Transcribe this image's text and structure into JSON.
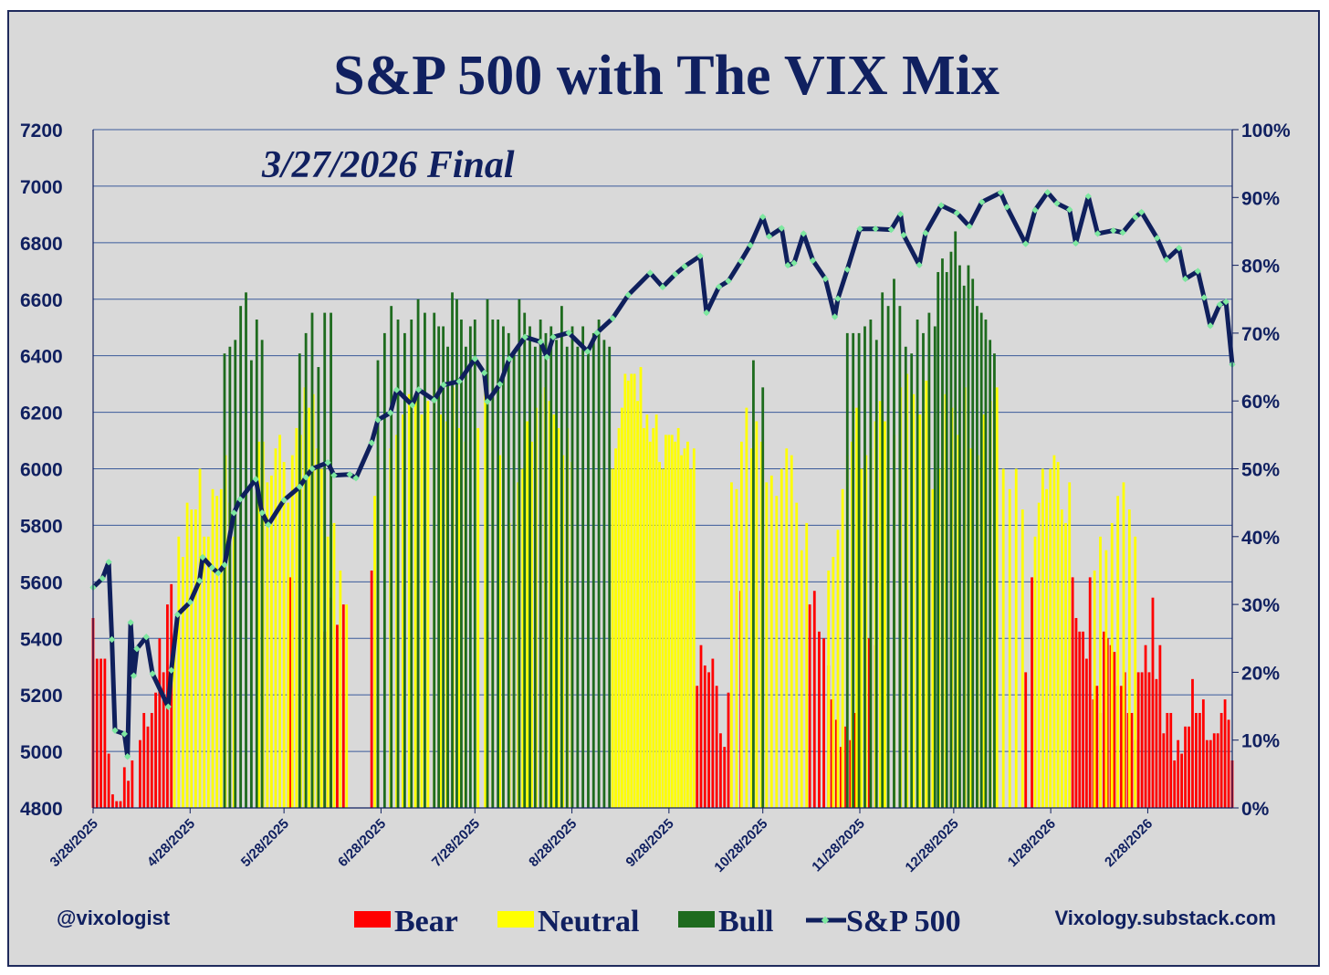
{
  "colors": {
    "background": "#d9d9d9",
    "bear": "#ff0000",
    "neutral": "#ffff00",
    "bull": "#1e6b1e",
    "sp500_line": "#0f1f5c",
    "sp500_marker": "#7ee8a0",
    "text": "#102060",
    "grid": "#3a5a9a"
  },
  "chart_data": {
    "type": "bar",
    "title": "S&P 500 with The VIX Mix",
    "subtitle": "3/27/2026 Final",
    "credit_left": "@vixologist",
    "credit_right": "Vixology.substack.com",
    "left_axis": {
      "ylim": [
        4800,
        7200
      ],
      "ticks": [
        "4800",
        "5000",
        "5200",
        "5400",
        "5600",
        "5800",
        "6000",
        "6200",
        "6400",
        "6600",
        "6800",
        "7000",
        "7200"
      ]
    },
    "right_axis": {
      "ylim": [
        0,
        100
      ],
      "ticks": [
        "0%",
        "10%",
        "20%",
        "30%",
        "40%",
        "50%",
        "60%",
        "70%",
        "80%",
        "90%",
        "100%"
      ]
    },
    "x_tick_labels": [
      "3/28/2025",
      "4/28/2025",
      "5/28/2025",
      "6/28/2025",
      "7/28/2025",
      "8/28/2025",
      "9/28/2025",
      "10/28/2025",
      "11/28/2025",
      "12/28/2025",
      "1/28/2026",
      "2/28/2026"
    ],
    "grid": true,
    "legend": {
      "placement": "bottom",
      "items": [
        {
          "name": "Bear",
          "kind": "bar",
          "color": "#ff0000"
        },
        {
          "name": "Neutral",
          "kind": "bar",
          "color": "#ffff00"
        },
        {
          "name": "Bull",
          "kind": "bar",
          "color": "#1e6b1e"
        },
        {
          "name": "S&P 500",
          "kind": "line",
          "color": "#0f1f5c"
        }
      ]
    },
    "bar_series": [
      {
        "name": "Bear",
        "axis": "right",
        "segments": [
          {
            "start": "3/28/2025",
            "end": "4/22/2025",
            "values": [
              28,
              22,
              22,
              22,
              8,
              2,
              1,
              1,
              6,
              4,
              7,
              0,
              10,
              14,
              12,
              14,
              17,
              25,
              20,
              30,
              33
            ]
          },
          {
            "start": "5/30/2025",
            "end": "5/30/2025",
            "values": [
              34
            ]
          },
          {
            "start": "6/10/2025",
            "end": "6/16/2025",
            "values": [
              26,
              31,
              27,
              30
            ]
          },
          {
            "start": "6/25/2025",
            "end": "6/25/2025",
            "values": [
              35
            ]
          },
          {
            "start": "8/1/2025",
            "end": "8/1/2025",
            "values": [
              26
            ]
          },
          {
            "start": "10/7/2025",
            "end": "10/17/2025",
            "values": [
              18,
              24,
              21,
              20,
              22,
              18,
              11,
              9,
              17
            ]
          },
          {
            "start": "10/21/2025",
            "end": "10/21/2025",
            "values": [
              32
            ]
          },
          {
            "start": "11/12/2025",
            "end": "11/18/2025",
            "values": [
              30,
              32,
              26,
              25,
              21
            ]
          },
          {
            "start": "11/19/2025",
            "end": "11/28/2025",
            "values": [
              16,
              13,
              9,
              12,
              10,
              14,
              7
            ]
          },
          {
            "start": "12/1/2025",
            "end": "12/3/2025",
            "values": [
              25,
              24
            ]
          },
          {
            "start": "1/20/2026",
            "end": "1/22/2026",
            "values": [
              20,
              34
            ]
          },
          {
            "start": "2/4/2026",
            "end": "2/24/2026",
            "values": [
              34,
              28,
              26,
              26,
              22,
              34,
              16,
              18,
              14,
              26,
              25,
              24,
              23,
              18,
              18,
              20,
              14,
              14,
              10
            ]
          },
          {
            "start": "2/25/2026",
            "end": "3/27/2026",
            "values": [
              20,
              20,
              24,
              20,
              31,
              19,
              24,
              11,
              14,
              14,
              7,
              10,
              8,
              12,
              12,
              19,
              14,
              14,
              16,
              10,
              10,
              11,
              11,
              14,
              16,
              13,
              7
            ]
          }
        ]
      },
      {
        "name": "Neutral",
        "axis": "right",
        "segments": [
          {
            "start": "4/23/2025",
            "end": "5/12/2025",
            "values": [
              25,
              40,
              37,
              45,
              44,
              44,
              50,
              40,
              40,
              47,
              46,
              47,
              52,
              45,
              40
            ]
          },
          {
            "start": "5/20/2025",
            "end": "6/9/2025",
            "values": [
              54,
              54,
              48,
              49,
              53,
              55,
              51,
              45,
              52,
              56,
              55,
              62,
              59,
              61,
              53,
              50
            ]
          },
          {
            "start": "6/11/2025",
            "end": "6/17/2025",
            "values": [
              40,
              42,
              35,
              30
            ]
          },
          {
            "start": "6/26/2025",
            "end": "6/27/2025",
            "values": [
              46,
              52
            ]
          },
          {
            "start": "7/1/2025",
            "end": "7/25/2025",
            "values": [
              53,
              55,
              58,
              61,
              61,
              58,
              60,
              62,
              58,
              57,
              62,
              56,
              54
            ]
          },
          {
            "start": "7/29/2025",
            "end": "8/5/2025",
            "values": [
              56,
              62,
              55,
              52
            ]
          },
          {
            "start": "8/8/2025",
            "end": "8/28/2025",
            "values": [
              42,
              39,
              48,
              50,
              57,
              54,
              59,
              61,
              62,
              60,
              58,
              56,
              52,
              56,
              51
            ]
          },
          {
            "start": "9/10/2025",
            "end": "10/6/2025",
            "values": [
              50,
              53,
              56,
              59,
              64,
              63,
              64,
              64,
              60,
              65,
              56,
              58,
              54,
              56,
              58,
              51,
              50,
              55,
              55,
              55,
              54,
              56,
              52,
              53,
              54,
              50,
              53
            ]
          },
          {
            "start": "10/18/2025",
            "end": "11/11/2025",
            "values": [
              48,
              47,
              54,
              59,
              53,
              57,
              54,
              48,
              49,
              46,
              50,
              53,
              52,
              45,
              38,
              42
            ]
          },
          {
            "start": "11/18/2025",
            "end": "12/6/2025",
            "values": [
              35,
              37,
              41,
              47,
              52,
              54,
              59,
              50,
              52,
              53,
              57,
              60,
              57
            ]
          },
          {
            "start": "12/9/2025",
            "end": "1/19/2026",
            "values": [
              55,
              62,
              64,
              61,
              58,
              63,
              47,
              50,
              61,
              59,
              55,
              62,
              53,
              52,
              58,
              60,
              62,
              50,
              47,
              50,
              44
            ]
          },
          {
            "start": "1/23/2026",
            "end": "2/3/2026",
            "values": [
              40,
              45,
              50,
              47,
              50,
              52,
              51,
              44,
              42,
              48
            ]
          },
          {
            "start": "2/11/2026",
            "end": "2/24/2026",
            "values": [
              35,
              40,
              38,
              42,
              46,
              48,
              44,
              40
            ]
          }
        ]
      },
      {
        "name": "Bull",
        "axis": "right",
        "segments": [
          {
            "start": "5/9/2025",
            "end": "5/21/2025",
            "values": [
              67,
              68,
              69,
              74,
              76,
              66,
              72,
              69
            ]
          },
          {
            "start": "6/2/2025",
            "end": "6/12/2025",
            "values": [
              67,
              70,
              73,
              65,
              73,
              73
            ]
          },
          {
            "start": "6/27/2025",
            "end": "7/12/2025",
            "values": [
              66,
              70,
              74,
              72,
              70,
              72,
              75,
              73
            ]
          },
          {
            "start": "7/15/2025",
            "end": "7/28/2025",
            "values": [
              73,
              71,
              71,
              68,
              76,
              75,
              72,
              68,
              71,
              72
            ]
          },
          {
            "start": "8/1/2025",
            "end": "9/9/2025",
            "values": [
              75,
              72,
              72,
              71,
              70,
              67,
              75,
              73,
              71,
              68,
              72,
              70,
              71,
              69,
              74,
              68,
              71,
              68,
              71,
              68,
              70,
              72,
              69,
              68
            ]
          },
          {
            "start": "10/25/2025",
            "end": "10/28/2025",
            "values": [
              66,
              62
            ]
          },
          {
            "start": "11/24/2025",
            "end": "12/22/2025",
            "values": [
              70,
              70,
              70,
              71,
              72,
              69,
              76,
              74,
              78,
              74,
              68,
              67,
              72,
              70,
              73,
              71
            ]
          },
          {
            "start": "12/23/2025",
            "end": "1/10/2026",
            "values": [
              79,
              81,
              79,
              82,
              85,
              80,
              77,
              80,
              78,
              74,
              73,
              72,
              69,
              67
            ]
          }
        ]
      }
    ],
    "line_series": {
      "name": "S&P 500",
      "axis": "left",
      "x": [
        "3/28/2025",
        "3/31/2025",
        "4/2/2025",
        "4/3/2025",
        "4/4/2025",
        "4/7/2025",
        "4/8/2025",
        "4/9/2025",
        "4/10/2025",
        "4/11/2025",
        "4/14/2025",
        "4/16/2025",
        "4/21/2025",
        "4/22/2025",
        "4/24/2025",
        "4/28/2025",
        "5/1/2025",
        "5/2/2025",
        "5/5/2025",
        "5/7/2025",
        "5/9/2025",
        "5/12/2025",
        "5/14/2025",
        "5/19/2025",
        "5/21/2025",
        "5/23/2025",
        "5/28/2025",
        "6/2/2025",
        "6/4/2025",
        "6/6/2025",
        "6/11/2025",
        "6/13/2025",
        "6/18/2025",
        "6/20/2025",
        "6/25/2025",
        "6/27/2025",
        "7/1/2025",
        "7/3/2025",
        "7/8/2025",
        "7/10/2025",
        "7/15/2025",
        "7/18/2025",
        "7/23/2025",
        "7/28/2025",
        "7/31/2025",
        "8/1/2025",
        "8/5/2025",
        "8/8/2025",
        "8/13/2025",
        "8/18/2025",
        "8/20/2025",
        "8/22/2025",
        "8/27/2025",
        "9/2/2025",
        "9/5/2025",
        "9/10/2025",
        "9/15/2025",
        "9/22/2025",
        "9/26/2025",
        "9/30/2025",
        "10/3/2025",
        "10/8/2025",
        "10/10/2025",
        "10/14/2025",
        "10/17/2025",
        "10/21/2025",
        "10/24/2025",
        "10/28/2025",
        "10/30/2025",
        "11/3/2025",
        "11/5/2025",
        "11/7/2025",
        "11/10/2025",
        "11/13/2025",
        "11/17/2025",
        "11/20/2025",
        "11/21/2025",
        "11/24/2025",
        "11/28/2025",
        "12/3/2025",
        "12/8/2025",
        "12/11/2025",
        "12/12/2025",
        "12/17/2025",
        "12/19/2025",
        "12/24/2025",
        "12/29/2025",
        "1/2/2026",
        "1/6/2026",
        "1/12/2026",
        "1/14/2026",
        "1/20/2026",
        "1/23/2026",
        "1/27/2026",
        "1/30/2026",
        "2/3/2026",
        "2/5/2026",
        "2/9/2026",
        "2/12/2026",
        "2/17/2026",
        "2/20/2026",
        "2/24/2026",
        "2/26/2026",
        "3/3/2026",
        "3/6/2026",
        "3/10/2026",
        "3/12/2026",
        "3/16/2026",
        "3/18/2026",
        "3/20/2026",
        "3/23/2026",
        "3/25/2026",
        "3/27/2026"
      ],
      "values": [
        5580,
        5612,
        5670,
        5396,
        5074,
        5062,
        4982,
        5456,
        5268,
        5363,
        5405,
        5275,
        5158,
        5287,
        5484,
        5528,
        5604,
        5687,
        5650,
        5631,
        5660,
        5844,
        5892,
        5963,
        5844,
        5802,
        5889,
        5936,
        5970,
        6000,
        6022,
        5977,
        5980,
        5967,
        6092,
        6173,
        6198,
        6279,
        6225,
        6280,
        6243,
        6297,
        6309,
        6389,
        6339,
        6238,
        6299,
        6389,
        6466,
        6449,
        6395,
        6466,
        6481,
        6415,
        6481,
        6532,
        6615,
        6693,
        6643,
        6688,
        6716,
        6753,
        6552,
        6644,
        6664,
        6735,
        6791,
        6891,
        6822,
        6851,
        6720,
        6728,
        6832,
        6737,
        6672,
        6538,
        6602,
        6705,
        6849,
        6849,
        6846,
        6901,
        6827,
        6721,
        6834,
        6932,
        6905,
        6858,
        6944,
        6977,
        6926,
        6796,
        6915,
        6978,
        6939,
        6917,
        6798,
        6964,
        6832,
        6843,
        6836,
        6890,
        6908,
        6816,
        6740,
        6781,
        6672,
        6699,
        6606,
        6506,
        6581,
        6591,
        6369
      ]
    }
  }
}
